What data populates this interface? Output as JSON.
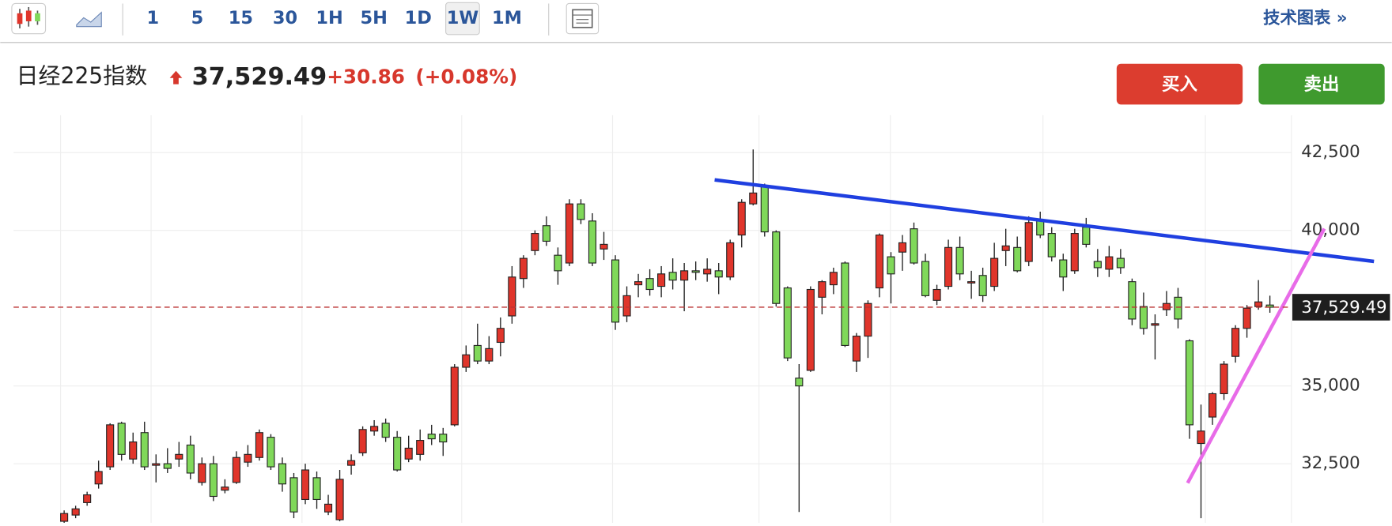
{
  "toolbar": {
    "intervals": [
      "1",
      "5",
      "15",
      "30",
      "1H",
      "5H",
      "1D",
      "1W",
      "1M"
    ],
    "selected": 7,
    "menu": "技术图表 »"
  },
  "header": {
    "name": "日经225指数",
    "price": "37,529.49",
    "change": "+30.86",
    "change_percent": "(+0.08%)"
  },
  "buttons": {
    "buy": "买入",
    "sell": "卖出"
  },
  "chart_data": {
    "type": "candlestick",
    "ylim": [
      30600,
      43700
    ],
    "yticks": [
      {
        "value": 32500,
        "label": "32,500"
      },
      {
        "value": 35000,
        "label": "35,000"
      },
      {
        "value": 40000,
        "label": "40,000"
      },
      {
        "value": 42500,
        "label": "42,500"
      }
    ],
    "grid": true,
    "last_price": {
      "value": 37529.49,
      "label": "37,529.49"
    },
    "series": [
      {
        "up_color": "#e0352b",
        "down_color": "#80d85a",
        "open": [
          30650,
          30850,
          31250,
          31850,
          32400,
          33800,
          32650,
          33500,
          32450,
          32500,
          32650,
          33100,
          31900,
          32500,
          31650,
          31900,
          32550,
          32700,
          33350,
          32500,
          32050,
          31350,
          32050,
          30950,
          30700,
          32450,
          32850,
          33550,
          33800,
          33350,
          32650,
          32800,
          33450,
          33450,
          33750,
          35600,
          36300,
          35800,
          36400,
          37250,
          38450,
          39350,
          40150,
          39200,
          38950,
          40850,
          40300,
          39400,
          39050,
          37250,
          38250,
          38450,
          38200,
          38650,
          38400,
          38700,
          38600,
          38700,
          38500,
          39850,
          40850,
          41400,
          39950,
          38150,
          35250,
          35500,
          37850,
          38250,
          38950,
          35800,
          36600,
          38150,
          39150,
          39300,
          40050,
          39000,
          37750,
          38200,
          39450,
          38350,
          38550,
          38200,
          39350,
          39450,
          39000,
          40300,
          39900,
          39050,
          38700,
          40100,
          39000,
          38750,
          39100,
          38350,
          37550,
          36950,
          37450,
          37850,
          36450,
          33150,
          34000,
          34750,
          35950,
          36850,
          37550,
          37600
        ],
        "high": [
          31000,
          31150,
          31600,
          32600,
          33800,
          33850,
          33500,
          33850,
          32800,
          33000,
          33200,
          33400,
          32700,
          32750,
          32000,
          32900,
          33100,
          33600,
          33450,
          32700,
          32200,
          32500,
          32250,
          31500,
          32300,
          32800,
          33700,
          33900,
          33950,
          33550,
          33400,
          33600,
          33750,
          33650,
          35700,
          36300,
          37000,
          36600,
          37200,
          38850,
          39200,
          40000,
          40450,
          39450,
          41000,
          41000,
          40550,
          39950,
          39200,
          38200,
          38600,
          38750,
          38850,
          39100,
          38950,
          39000,
          39100,
          38950,
          39700,
          41000,
          42600,
          41500,
          40000,
          38200,
          35700,
          38200,
          38400,
          38800,
          39000,
          36700,
          37750,
          39900,
          39300,
          39850,
          40250,
          39250,
          38250,
          39700,
          39800,
          38700,
          38800,
          39600,
          40050,
          39800,
          40450,
          40600,
          40100,
          39250,
          40050,
          40400,
          39400,
          39500,
          39400,
          38450,
          38000,
          37300,
          38050,
          38150,
          36500,
          34400,
          34800,
          35800,
          36950,
          37600,
          38400,
          37900
        ],
        "low": [
          30600,
          30750,
          31150,
          31700,
          32300,
          32600,
          32500,
          32300,
          31900,
          32200,
          32400,
          32000,
          31800,
          31300,
          31550,
          31850,
          32400,
          32600,
          32300,
          31600,
          30750,
          31200,
          31050,
          30850,
          30650,
          32150,
          32750,
          33400,
          33200,
          32250,
          32550,
          32600,
          33100,
          32750,
          33700,
          35450,
          35700,
          35700,
          35950,
          37000,
          38150,
          39200,
          39500,
          38250,
          38850,
          40200,
          38850,
          39050,
          36800,
          37050,
          37850,
          37900,
          37850,
          38100,
          37400,
          38400,
          38350,
          37950,
          38400,
          39450,
          40800,
          39800,
          37550,
          35800,
          30950,
          35450,
          37300,
          37950,
          36250,
          35450,
          35900,
          37850,
          37650,
          38700,
          38900,
          37850,
          37600,
          38100,
          38400,
          37800,
          37700,
          38050,
          38850,
          38650,
          38850,
          39750,
          39000,
          38050,
          38600,
          39450,
          38500,
          38500,
          38600,
          36950,
          36650,
          35850,
          37250,
          36850,
          33300,
          30750,
          33750,
          34550,
          35750,
          36550,
          37450,
          37350
        ],
        "close": [
          30900,
          31050,
          31500,
          32250,
          33750,
          32800,
          33200,
          32400,
          32500,
          32350,
          32800,
          32200,
          32500,
          31450,
          31750,
          32700,
          32800,
          33500,
          32400,
          31850,
          30950,
          32300,
          31350,
          31200,
          32000,
          32600,
          33600,
          33700,
          33350,
          32300,
          33000,
          33250,
          33300,
          33200,
          35600,
          36000,
          35800,
          36200,
          36850,
          38500,
          39100,
          39900,
          39650,
          38700,
          40850,
          40350,
          38950,
          39550,
          37050,
          37900,
          38350,
          38100,
          38600,
          38400,
          38700,
          38650,
          38750,
          38500,
          39600,
          40900,
          41200,
          39950,
          37650,
          35900,
          35000,
          38100,
          38350,
          38650,
          36300,
          36600,
          37650,
          39850,
          38600,
          39600,
          38950,
          37900,
          38100,
          39450,
          38600,
          38350,
          37900,
          39100,
          39500,
          38700,
          40250,
          39850,
          39150,
          38500,
          39900,
          39550,
          38800,
          39150,
          38800,
          37150,
          36850,
          37000,
          37650,
          37150,
          33750,
          33550,
          34750,
          35700,
          36850,
          37500,
          37700,
          37529.49
        ]
      }
    ]
  }
}
